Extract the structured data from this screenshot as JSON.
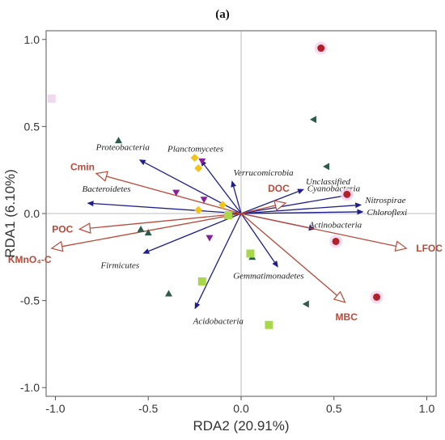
{
  "chart_data": {
    "type": "scatter",
    "panel_label": "(a)",
    "title": "",
    "xlabel": "RDA2 (20.91%)",
    "ylabel": "RDA1 (6.10%)",
    "xlim": [
      -1.05,
      1.05
    ],
    "ylim": [
      -1.05,
      1.05
    ],
    "x_ticks": [
      -1.0,
      -0.5,
      0.0,
      0.5,
      1.0
    ],
    "y_ticks": [
      -1.0,
      -0.5,
      0.0,
      0.5,
      1.0
    ],
    "x_tick_labels": [
      "-1.0",
      "-0.5",
      "0.0",
      "0.5",
      "1.0"
    ],
    "y_tick_labels": [
      "-1.0",
      "-0.5",
      "0.0",
      "0.5",
      "1.0"
    ],
    "grid": false,
    "zero_lines": true,
    "species_arrows": {
      "color": "#1f1f8a",
      "items": [
        {
          "name": "Proteobacteria",
          "x": -0.55,
          "y": 0.31
        },
        {
          "name": "Planctomycetes",
          "x": -0.22,
          "y": 0.31
        },
        {
          "name": "Verrucomicrobia",
          "x": -0.05,
          "y": 0.19
        },
        {
          "name": "Bacteroidetes",
          "x": -0.83,
          "y": 0.06
        },
        {
          "name": "Firmicutes",
          "x": -0.53,
          "y": -0.23
        },
        {
          "name": "Acidobacteria",
          "x": -0.25,
          "y": -0.55
        },
        {
          "name": "Gemmatimonadetes",
          "x": 0.2,
          "y": -0.31
        },
        {
          "name": "Unclassified",
          "x": 0.34,
          "y": 0.14
        },
        {
          "name": "Cyanobacteria",
          "x": 0.6,
          "y": 0.11
        },
        {
          "name": "Nitrospirae",
          "x": 0.65,
          "y": 0.05
        },
        {
          "name": "Chloroflexi",
          "x": 0.66,
          "y": 0.01
        },
        {
          "name": "Actinobacteria",
          "x": 0.4,
          "y": -0.09
        }
      ]
    },
    "env_arrows": {
      "color": "#b84a3a",
      "items": [
        {
          "name": "Cmin",
          "x": -0.78,
          "y": 0.23
        },
        {
          "name": "DOC",
          "x": 0.24,
          "y": 0.06
        },
        {
          "name": "POC",
          "x": -0.87,
          "y": -0.09
        },
        {
          "name": "KMnO₄-C",
          "x": -1.02,
          "y": -0.2
        },
        {
          "name": "LFOC",
          "x": 0.89,
          "y": -0.2
        },
        {
          "name": "MBC",
          "x": 0.56,
          "y": -0.51
        }
      ]
    },
    "sample_points": [
      {
        "shape": "circle",
        "color": "#b3202a",
        "x": 0.43,
        "y": 0.95
      },
      {
        "shape": "circle",
        "color": "#b3202a",
        "x": 0.57,
        "y": 0.11
      },
      {
        "shape": "circle",
        "color": "#b3202a",
        "x": 0.51,
        "y": -0.16
      },
      {
        "shape": "circle",
        "color": "#b3202a",
        "x": 0.73,
        "y": -0.48
      },
      {
        "shape": "square",
        "color": "#f0d8f0",
        "x": -1.02,
        "y": 0.66
      },
      {
        "shape": "triangle-left",
        "color": "#2e5a4a",
        "x": 0.39,
        "y": 0.54
      },
      {
        "shape": "triangle-left",
        "color": "#2e5a4a",
        "x": 0.46,
        "y": 0.27
      },
      {
        "shape": "triangle-left",
        "color": "#2e5a4a",
        "x": 0.35,
        "y": -0.52
      },
      {
        "shape": "triangle-up",
        "color": "#2e5a4a",
        "x": -0.66,
        "y": 0.42
      },
      {
        "shape": "triangle-up",
        "color": "#2e5a4a",
        "x": -0.54,
        "y": -0.09
      },
      {
        "shape": "triangle-up",
        "color": "#2e5a4a",
        "x": -0.5,
        "y": -0.11
      },
      {
        "shape": "triangle-up",
        "color": "#2e5a4a",
        "x": -0.39,
        "y": -0.46
      },
      {
        "shape": "triangle-up",
        "color": "#2e5a4a",
        "x": 0.06,
        "y": -0.25
      },
      {
        "shape": "triangle-down",
        "color": "#8a1f9a",
        "x": -0.35,
        "y": 0.12
      },
      {
        "shape": "triangle-down",
        "color": "#8a1f9a",
        "x": -0.21,
        "y": 0.3
      },
      {
        "shape": "triangle-down",
        "color": "#8a1f9a",
        "x": -0.2,
        "y": 0.08
      },
      {
        "shape": "triangle-down",
        "color": "#8a1f9a",
        "x": -0.17,
        "y": -0.14
      },
      {
        "shape": "diamond",
        "color": "#f0c419",
        "x": -0.25,
        "y": 0.32
      },
      {
        "shape": "diamond",
        "color": "#f0c419",
        "x": -0.23,
        "y": 0.26
      },
      {
        "shape": "diamond",
        "color": "#f0c419",
        "x": -0.1,
        "y": 0.05
      },
      {
        "shape": "diamond",
        "color": "#f0c419",
        "x": -0.23,
        "y": 0.02
      },
      {
        "shape": "square",
        "color": "#a8d84a",
        "x": -0.07,
        "y": -0.01
      },
      {
        "shape": "square",
        "color": "#a8d84a",
        "x": 0.05,
        "y": -0.23
      },
      {
        "shape": "square",
        "color": "#a8d84a",
        "x": -0.21,
        "y": -0.39
      },
      {
        "shape": "square",
        "color": "#a8d84a",
        "x": 0.15,
        "y": -0.64
      }
    ]
  }
}
